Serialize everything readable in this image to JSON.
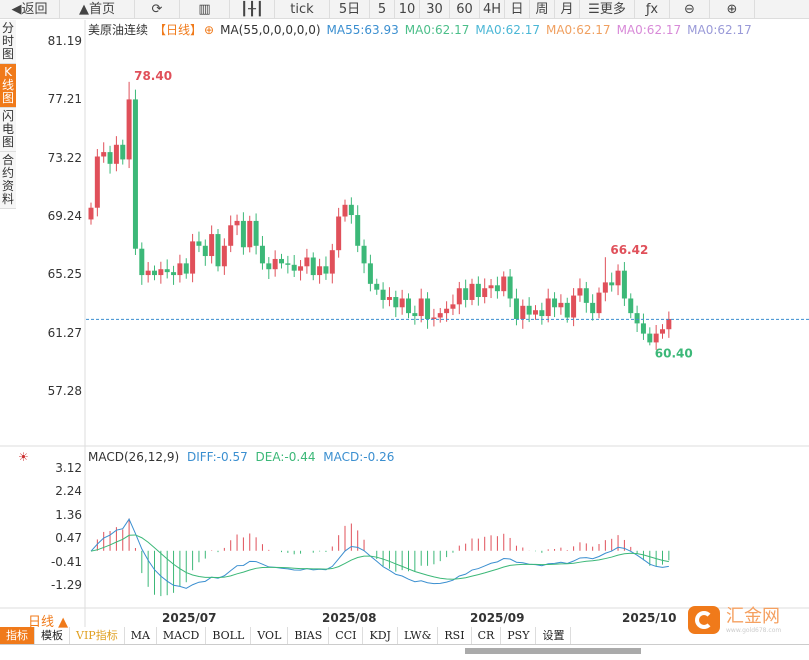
{
  "toolbar": {
    "items": [
      {
        "label": "◀返回",
        "icon": "back-icon"
      },
      {
        "label": "▲首页",
        "icon": "home-icon"
      },
      {
        "label": "⟳",
        "icon": "refresh-icon"
      },
      {
        "label": "▥",
        "icon": "chart-icon"
      },
      {
        "label": "┃╂┃",
        "icon": "candle-icon"
      },
      {
        "label": "tick"
      },
      {
        "label": "5日"
      },
      {
        "label": "5"
      },
      {
        "label": "10"
      },
      {
        "label": "30"
      },
      {
        "label": "60"
      },
      {
        "label": "4H"
      },
      {
        "label": "日"
      },
      {
        "label": "周"
      },
      {
        "label": "月"
      },
      {
        "label": "☰更多",
        "icon": "menu-icon"
      },
      {
        "label": "ƒx",
        "icon": "function-icon"
      },
      {
        "label": "⊖",
        "icon": "zoom-out-icon"
      },
      {
        "label": "⊕",
        "icon": "zoom-in-icon"
      }
    ]
  },
  "sidebar": {
    "items": [
      {
        "label": "分时图"
      },
      {
        "label": "K线图",
        "active": true
      },
      {
        "label": "闪电图"
      },
      {
        "label": "合约资料"
      }
    ]
  },
  "legend": {
    "name": "美原油连续",
    "period": "【日线】",
    "ma_setting": "MA(55,0,0,0,0,0)",
    "ma_values": [
      {
        "label": "MA55:63.93",
        "color": "#3b8fd0"
      },
      {
        "label": "MA0:62.17",
        "color": "#4cbf8a"
      },
      {
        "label": "MA0:62.17",
        "color": "#4bb7d6"
      },
      {
        "label": "MA0:62.17",
        "color": "#f0a060"
      },
      {
        "label": "MA0:62.17",
        "color": "#d88ad8"
      },
      {
        "label": "MA0:62.17",
        "color": "#9a9ad8"
      }
    ]
  },
  "price_axis": [
    "81.19",
    "77.21",
    "73.22",
    "69.24",
    "65.25",
    "61.27",
    "57.28"
  ],
  "price_annotations": {
    "high": "78.40",
    "mid_high": "66.42",
    "low": "60.40"
  },
  "current_price": 62.17,
  "macd": {
    "title": "MACD(26,12,9)",
    "diff": "DIFF:-0.57",
    "dea": "DEA:-0.44",
    "macd": "MACD:-0.26",
    "axis": [
      "3.12",
      "2.24",
      "1.36",
      "0.47",
      "-0.41",
      "-1.29"
    ]
  },
  "x_axis": {
    "period_button": "日线 ▲",
    "labels": [
      "2025/07",
      "2025/08",
      "2025/09",
      "2025/10"
    ]
  },
  "bottom_tabs": [
    "指标",
    "模板",
    "VIP指标",
    "MA",
    "MACD",
    "BOLL",
    "VOL",
    "BIAS",
    "CCI",
    "KDJ",
    "LW&",
    "RSI",
    "CR",
    "PSY",
    "设置"
  ],
  "logo": {
    "text": "汇金网",
    "sub": "www.gold678.com"
  },
  "colors": {
    "up": "#e0505a",
    "down": "#3cb878",
    "ma55": "#3b8fd0",
    "accent": "#f07a1a"
  },
  "candles": {
    "closes": [
      69.8,
      73.3,
      73.6,
      72.8,
      74.1,
      73.1,
      77.2,
      67.0,
      65.2,
      65.5,
      65.2,
      65.6,
      65.4,
      65.2,
      66.0,
      65.3,
      67.5,
      67.2,
      66.5,
      68.0,
      65.8,
      67.2,
      68.6,
      68.9,
      67.1,
      68.9,
      67.2,
      66.0,
      65.6,
      66.3,
      66.0,
      65.9,
      65.5,
      65.8,
      66.4,
      65.2,
      65.8,
      65.3,
      66.9,
      69.2,
      70.0,
      69.3,
      67.2,
      66.0,
      64.6,
      64.2,
      63.5,
      63.7,
      63.0,
      63.6,
      62.6,
      62.4,
      63.6,
      62.2,
      62.3,
      62.6,
      62.9,
      63.2,
      64.3,
      63.5,
      64.6,
      63.7,
      64.3,
      64.5,
      64.1,
      65.1,
      63.6,
      62.2,
      63.1,
      62.5,
      62.8,
      62.4,
      63.6,
      63.0,
      63.3,
      62.3,
      63.8,
      64.3,
      63.3,
      62.6,
      64.0,
      64.7,
      64.5,
      65.5,
      63.6,
      62.6,
      61.9,
      61.2,
      60.6,
      61.2,
      61.5,
      62.2
    ],
    "high_marker_index": 6,
    "mid_high_marker_index": 81,
    "low_marker_index": 88
  }
}
